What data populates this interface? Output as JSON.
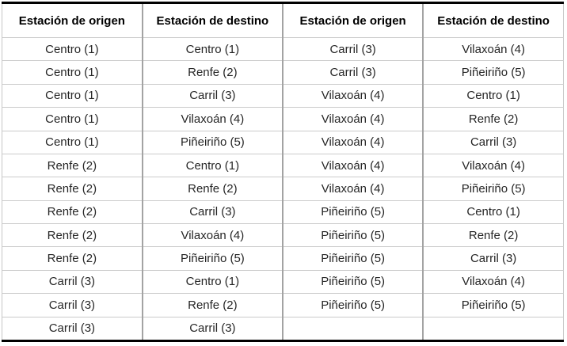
{
  "table": {
    "headers": [
      "Estación de origen",
      "Estación de destino",
      "Estación de origen",
      "Estación de destino"
    ],
    "rows": [
      [
        "Centro (1)",
        "Centro (1)",
        "Carril (3)",
        "Vilaxoán (4)"
      ],
      [
        "Centro (1)",
        "Renfe (2)",
        "Carril (3)",
        "Piñeiriño (5)"
      ],
      [
        "Centro (1)",
        "Carril (3)",
        "Vilaxoán (4)",
        "Centro (1)"
      ],
      [
        "Centro (1)",
        "Vilaxoán (4)",
        "Vilaxoán (4)",
        "Renfe (2)"
      ],
      [
        "Centro (1)",
        "Piñeiriño (5)",
        "Vilaxoán (4)",
        "Carril (3)"
      ],
      [
        "Renfe (2)",
        "Centro (1)",
        "Vilaxoán (4)",
        "Vilaxoán (4)"
      ],
      [
        "Renfe (2)",
        "Renfe (2)",
        "Vilaxoán (4)",
        "Piñeiriño (5)"
      ],
      [
        "Renfe (2)",
        "Carril (3)",
        "Piñeiriño (5)",
        "Centro (1)"
      ],
      [
        "Renfe (2)",
        "Vilaxoán (4)",
        "Piñeiriño (5)",
        "Renfe (2)"
      ],
      [
        "Renfe (2)",
        "Piñeiriño (5)",
        "Piñeiriño (5)",
        "Carril (3)"
      ],
      [
        "Carril (3)",
        "Centro (1)",
        "Piñeiriño (5)",
        "Vilaxoán (4)"
      ],
      [
        "Carril (3)",
        "Renfe (2)",
        "Piñeiriño (5)",
        "Piñeiriño (5)"
      ],
      [
        "Carril (3)",
        "Carril (3)",
        "",
        ""
      ]
    ],
    "stations": [
      "Centro (1)",
      "Renfe (2)",
      "Carril (3)",
      "Vilaxoán (4)",
      "Piñeiriño (5)"
    ]
  },
  "chart_data": {
    "type": "table",
    "columns": [
      "Estación de origen",
      "Estación de destino",
      "Estación de origen",
      "Estación de destino"
    ],
    "rows": [
      [
        "Centro (1)",
        "Centro (1)",
        "Carril (3)",
        "Vilaxoán (4)"
      ],
      [
        "Centro (1)",
        "Renfe (2)",
        "Carril (3)",
        "Piñeiriño (5)"
      ],
      [
        "Centro (1)",
        "Carril (3)",
        "Vilaxoán (4)",
        "Centro (1)"
      ],
      [
        "Centro (1)",
        "Vilaxoán (4)",
        "Vilaxoán (4)",
        "Renfe (2)"
      ],
      [
        "Centro (1)",
        "Piñeiriño (5)",
        "Vilaxoán (4)",
        "Carril (3)"
      ],
      [
        "Renfe (2)",
        "Centro (1)",
        "Vilaxoán (4)",
        "Vilaxoán (4)"
      ],
      [
        "Renfe (2)",
        "Renfe (2)",
        "Vilaxoán (4)",
        "Piñeiriño (5)"
      ],
      [
        "Renfe (2)",
        "Carril (3)",
        "Piñeiriño (5)",
        "Centro (1)"
      ],
      [
        "Renfe (2)",
        "Vilaxoán (4)",
        "Piñeiriño (5)",
        "Renfe (2)"
      ],
      [
        "Renfe (2)",
        "Piñeiriño (5)",
        "Piñeiriño (5)",
        "Carril (3)"
      ],
      [
        "Carril (3)",
        "Centro (1)",
        "Piñeiriño (5)",
        "Vilaxoán (4)"
      ],
      [
        "Carril (3)",
        "Renfe (2)",
        "Piñeiriño (5)",
        "Piñeiriño (5)"
      ],
      [
        "Carril (3)",
        "Carril (3)",
        "",
        ""
      ]
    ]
  },
  "colors": {
    "outer_border": "#000000",
    "inner_vertical_border": "#a3a3a3",
    "inner_horizontal_border": "#cbcbcb",
    "header_text": "#000000",
    "cell_text": "#262626",
    "background": "#ffffff"
  }
}
